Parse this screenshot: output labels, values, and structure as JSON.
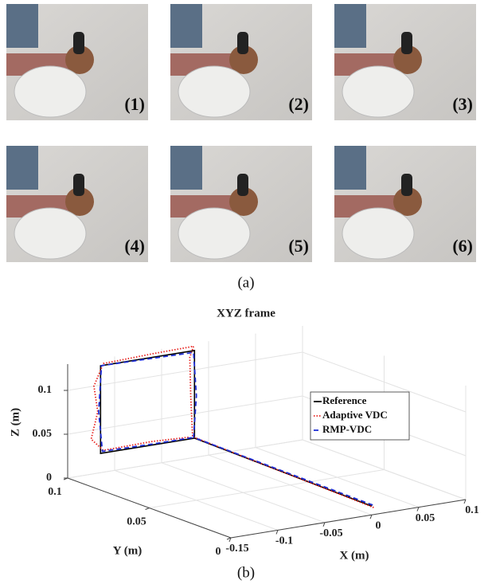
{
  "figure": {
    "panel_a": {
      "caption": "(a)",
      "frames": [
        {
          "label": "(1)"
        },
        {
          "label": "(2)"
        },
        {
          "label": "(3)"
        },
        {
          "label": "(4)"
        },
        {
          "label": "(5)"
        },
        {
          "label": "(6)"
        }
      ]
    },
    "panel_b": {
      "caption": "(b)"
    }
  },
  "chart_data": {
    "type": "line3d",
    "title": "XYZ frame",
    "x_label": "X (m)",
    "y_label": "Y (m)",
    "z_label": "Z (m)",
    "xlim": [
      -0.15,
      0.1
    ],
    "ylim": [
      0,
      0.1
    ],
    "zlim": [
      0,
      0.13
    ],
    "xticks": [
      -0.15,
      -0.1,
      -0.05,
      0,
      0.05,
      0.1
    ],
    "yticks": [
      0,
      0.05,
      0.1
    ],
    "zticks": [
      0,
      0.05,
      0.1
    ],
    "grid": true,
    "legend": "upper right",
    "series": [
      {
        "name": "Reference",
        "color": "#000000",
        "style": "solid",
        "x": [
          0,
          -0.015,
          -0.015,
          -0.115,
          -0.115,
          -0.015
        ],
        "y": [
          0,
          0.1,
          0.1,
          0.1,
          0.1,
          0.1
        ],
        "z": [
          0.01,
          0.022,
          0.122,
          0.122,
          0.022,
          0.022
        ]
      },
      {
        "name": "Adaptive VDC",
        "color": "#e8231f",
        "style": "dotted",
        "x": [
          0.002,
          -0.017,
          -0.019,
          -0.02,
          -0.016,
          -0.06,
          -0.112,
          -0.122,
          -0.118,
          -0.125,
          -0.112,
          -0.06,
          -0.02
        ],
        "y": [
          0,
          0.1,
          0.1,
          0.1,
          0.1,
          0.1,
          0.1,
          0.1,
          0.1,
          0.1,
          0.1,
          0.1,
          0.1
        ],
        "z": [
          0.008,
          0.024,
          0.07,
          0.115,
          0.127,
          0.126,
          0.124,
          0.1,
          0.07,
          0.04,
          0.025,
          0.026,
          0.024
        ]
      },
      {
        "name": "RMP-VDC",
        "color": "#1f2fd6",
        "style": "dashed",
        "x": [
          0.001,
          -0.016,
          -0.013,
          -0.016,
          -0.065,
          -0.114,
          -0.117,
          -0.113,
          -0.06,
          -0.016
        ],
        "y": [
          0,
          0.1,
          0.1,
          0.1,
          0.1,
          0.1,
          0.1,
          0.1,
          0.1,
          0.1
        ],
        "z": [
          0.011,
          0.023,
          0.07,
          0.12,
          0.121,
          0.122,
          0.07,
          0.024,
          0.023,
          0.023
        ]
      }
    ]
  }
}
